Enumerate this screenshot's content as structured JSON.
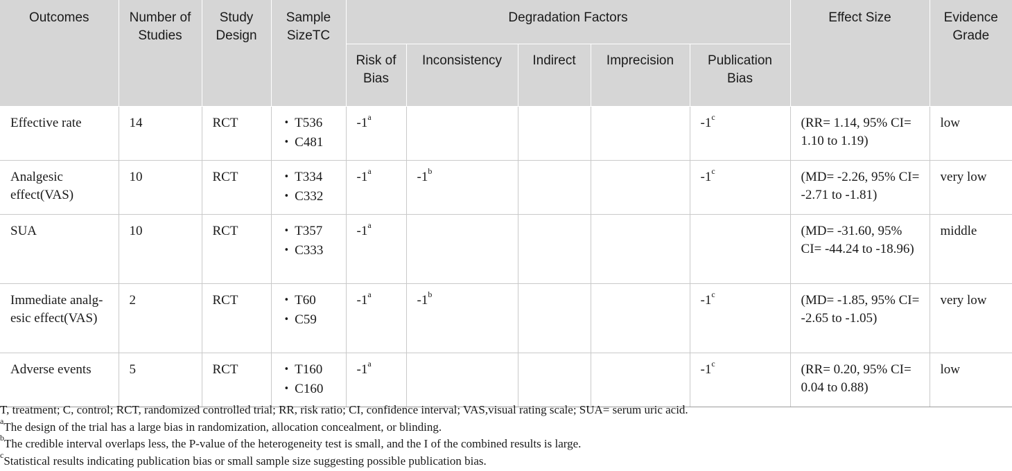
{
  "headers": {
    "outcomes": "Outcomes",
    "number_of_studies": "Number of Studies",
    "study_design": "Study Design",
    "sample_size": "Sample SizeTC",
    "degradation_factors": "Degradation Factors",
    "effect_size": "Effect Size",
    "evidence_grade": "Evidence Grade",
    "risk_of_bias": "Risk of Bias",
    "inconsistency": "Inconsistency",
    "indirect": "Indirect",
    "imprecision": "Imprecision",
    "publication_bias": "Publication Bias"
  },
  "rows": [
    {
      "outcome": "Effective rate",
      "studies": "14",
      "design": "RCT",
      "sample_t": "T536",
      "sample_c": "C481",
      "risk_of_bias": "-1",
      "risk_of_bias_sup": "a",
      "inconsistency": "",
      "inconsistency_sup": "",
      "indirect": "",
      "imprecision": "",
      "publication_bias": "-1",
      "publication_bias_sup": "c",
      "effect_size": "(RR= 1.14, 95% CI= 1.10 to 1.19)",
      "grade": "low"
    },
    {
      "outcome": "Analgesic effect(VAS)",
      "studies": "10",
      "design": "RCT",
      "sample_t": "T334",
      "sample_c": "C332",
      "risk_of_bias": "-1",
      "risk_of_bias_sup": "a",
      "inconsistency": "-1",
      "inconsistency_sup": "b",
      "indirect": "",
      "imprecision": "",
      "publication_bias": "-1",
      "publication_bias_sup": "c",
      "effect_size": "(MD= -2.26, 95% CI= -2.71 to -1.81)",
      "grade": "very low"
    },
    {
      "outcome": "SUA",
      "studies": "10",
      "design": "RCT",
      "sample_t": "T357",
      "sample_c": "C333",
      "risk_of_bias": "-1",
      "risk_of_bias_sup": "a",
      "inconsistency": "",
      "inconsistency_sup": "",
      "indirect": "",
      "imprecision": "",
      "publication_bias": "",
      "publication_bias_sup": "",
      "effect_size": "(MD= -31.60, 95% CI= -44.24 to -18.96)",
      "grade": "middle"
    },
    {
      "outcome": "Immediate analg-esic effect(VAS)",
      "studies": "2",
      "design": "RCT",
      "sample_t": "T60",
      "sample_c": "C59",
      "risk_of_bias": "-1",
      "risk_of_bias_sup": "a",
      "inconsistency": "-1",
      "inconsistency_sup": "b",
      "indirect": "",
      "imprecision": "",
      "publication_bias": "-1",
      "publication_bias_sup": "c",
      "effect_size": "(MD= -1.85, 95% CI= -2.65 to -1.05)",
      "grade": "very low"
    },
    {
      "outcome": "Adverse events",
      "studies": "5",
      "design": "RCT",
      "sample_t": "T160",
      "sample_c": "C160",
      "risk_of_bias": "-1",
      "risk_of_bias_sup": "a",
      "inconsistency": "",
      "inconsistency_sup": "",
      "indirect": "",
      "imprecision": "",
      "publication_bias": "-1",
      "publication_bias_sup": "c",
      "effect_size": "(RR= 0.20, 95% CI= 0.04 to 0.88)",
      "grade": "low"
    }
  ],
  "footnotes": {
    "abbreviations": "T, treatment; C, control; RCT, randomized controlled trial; RR, risk ratio; CI, confidence interval; VAS,visual rating scale; SUA= serum uric acid.",
    "a_marker": "a",
    "a_text": "The design of the trial has a large bias in randomization, allocation concealment, or blinding.",
    "b_marker": "b",
    "b_text": "The credible interval overlaps less, the P-value of the heterogeneity test is small, and the I of the combined results is large.",
    "c_marker": "c",
    "c_text": "Statistical results indicating publication bias or small sample size suggesting possible publication bias."
  }
}
